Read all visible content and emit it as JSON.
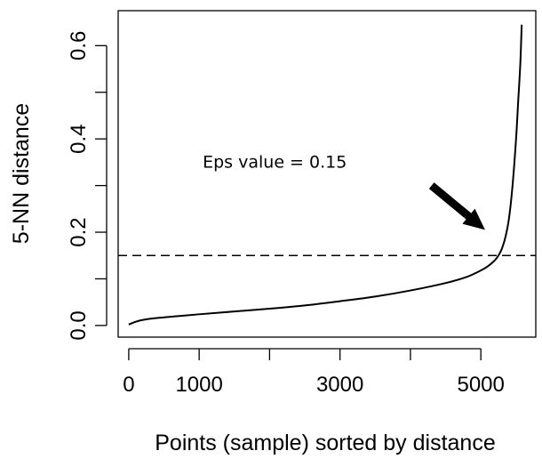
{
  "chart_data": {
    "type": "line",
    "title": "",
    "xlabel": "Points (sample) sorted by distance",
    "ylabel": "5-NN distance",
    "xlim": [
      -150,
      5780
    ],
    "ylim": [
      -0.025,
      0.675
    ],
    "x_ticks": [
      0,
      1000,
      2000,
      3000,
      4000,
      5000
    ],
    "x_tick_labels": [
      "0",
      "1000",
      "",
      "3000",
      "",
      "5000"
    ],
    "y_ticks": [
      0.0,
      0.1,
      0.2,
      0.3,
      0.4,
      0.5,
      0.6
    ],
    "y_tick_labels": [
      "0.0",
      "",
      "0.2",
      "",
      "0.4",
      "",
      "0.6"
    ],
    "grid": false,
    "series": [
      {
        "x": [
          0,
          100,
          200,
          400,
          700,
          1000,
          1500,
          2000,
          2500,
          3000,
          3500,
          4000,
          4500,
          4800,
          5000,
          5100,
          5200,
          5250,
          5300,
          5350,
          5400,
          5450,
          5500,
          5530,
          5560,
          5580
        ],
        "y": [
          0.002,
          0.008,
          0.012,
          0.016,
          0.02,
          0.024,
          0.03,
          0.036,
          0.043,
          0.052,
          0.062,
          0.075,
          0.091,
          0.104,
          0.118,
          0.127,
          0.14,
          0.15,
          0.165,
          0.19,
          0.23,
          0.3,
          0.4,
          0.48,
          0.56,
          0.645
        ]
      }
    ],
    "reference_line": {
      "orientation": "horizontal",
      "y": 0.15,
      "style": "dashed"
    },
    "annotations": [
      {
        "text": "Eps value = 0.15",
        "x": 1050,
        "y": 0.338
      }
    ],
    "arrow": {
      "from": [
        4300,
        0.3
      ],
      "to": [
        5060,
        0.205
      ]
    }
  }
}
